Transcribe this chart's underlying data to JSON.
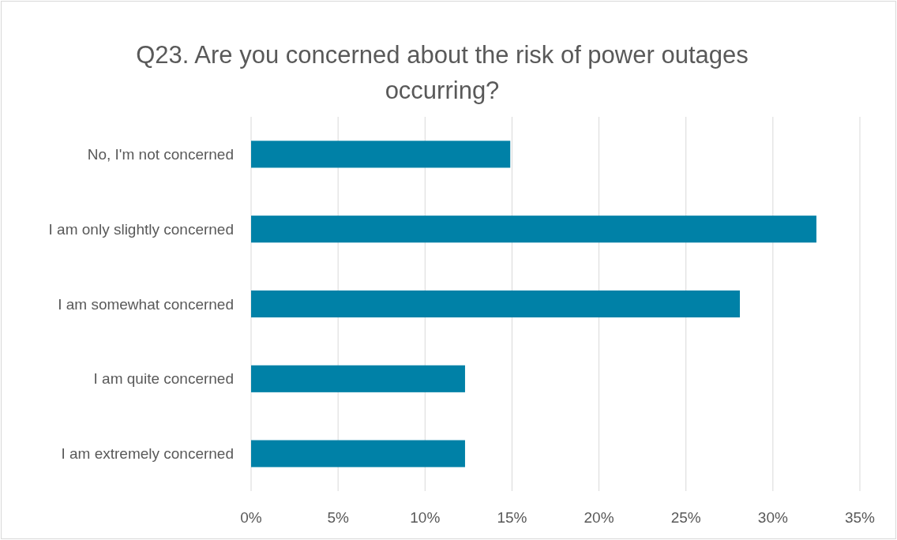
{
  "chart_data": {
    "type": "bar",
    "orientation": "horizontal",
    "title": "Q23. Are you concerned about the risk of power outages occurring?",
    "categories": [
      "No, I'm not concerned",
      "I am only slightly concerned",
      "I am somewhat concerned",
      "I am quite concerned",
      "I am extremely concerned"
    ],
    "values": [
      14.9,
      32.5,
      28.1,
      12.3,
      12.3
    ],
    "color": "#0081a7",
    "xlim": [
      0,
      35
    ],
    "xticks": [
      {
        "value": 0,
        "label": "0%"
      },
      {
        "value": 5,
        "label": "5%"
      },
      {
        "value": 10,
        "label": "10%"
      },
      {
        "value": 15,
        "label": "15%"
      },
      {
        "value": 20,
        "label": "20%"
      },
      {
        "value": 25,
        "label": "25%"
      },
      {
        "value": 30,
        "label": "30%"
      },
      {
        "value": 35,
        "label": "35%"
      }
    ],
    "grid": "x"
  }
}
